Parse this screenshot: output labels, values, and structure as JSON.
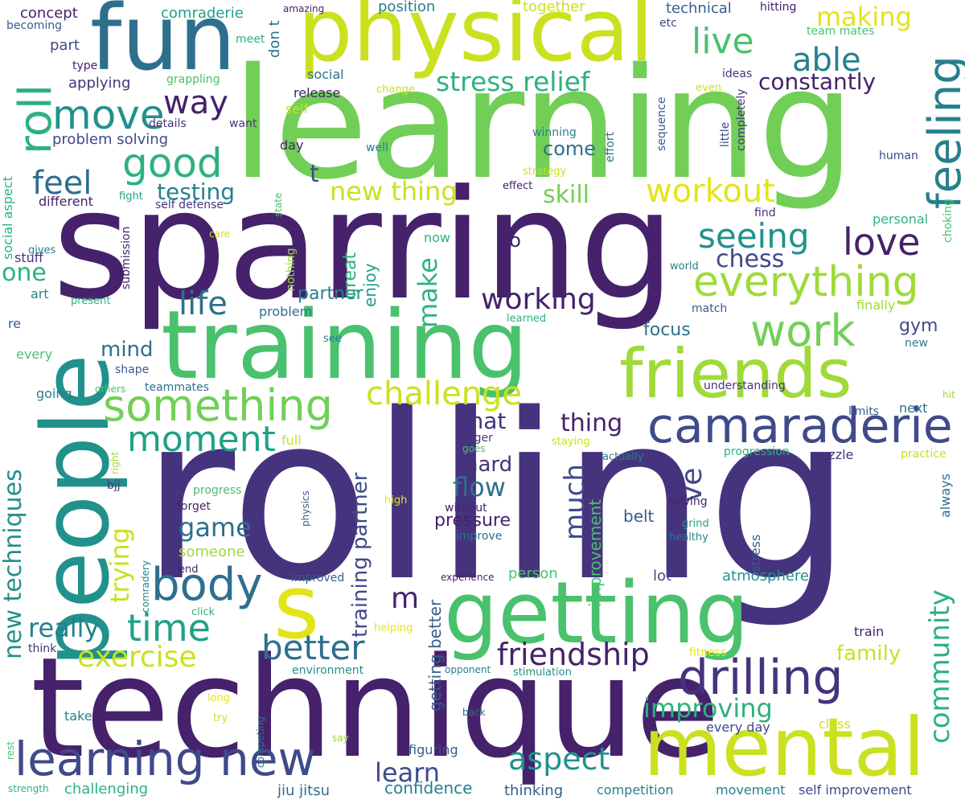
{
  "palette": {
    "dark_purple": "#45226b",
    "indigo": "#46337e",
    "blue_purple": "#3f4a8a",
    "blue": "#365c8d",
    "steel_blue": "#2e6f8e",
    "teal_blue": "#277f8e",
    "teal": "#21918c",
    "green_teal": "#1fa187",
    "green": "#2db27d",
    "medium_green": "#4ac16d",
    "light_green": "#71cf57",
    "yellow_green": "#a0da39",
    "lime": "#cae11f",
    "yellow": "#e3e418"
  },
  "words": [
    "rolling",
    "technique",
    "sparring",
    "learning",
    "fun",
    "physical",
    "training",
    "people",
    "getting",
    "mental",
    "friends",
    "s",
    "learning new",
    "drilling",
    "camaraderie",
    "something",
    "everything",
    "body",
    "time",
    "moment",
    "work",
    "feeling",
    "good",
    "move",
    "roll",
    "friendship",
    "love",
    "seeing",
    "workout",
    "challenge",
    "better",
    "exercise",
    "aspect",
    "life",
    "way",
    "working",
    "new thing",
    "improving",
    "community",
    "live",
    "able",
    "stress relief",
    "making",
    "constantly",
    "chess",
    "learn",
    "new techniques",
    "game",
    "m",
    "feel",
    "testing",
    "really",
    "trying",
    "flow",
    "mat",
    "make",
    "much",
    "ve",
    "thing",
    "hard",
    "skill",
    "come",
    "family",
    "mind",
    "one",
    "focus",
    "gym",
    "t",
    "training partner",
    "partner",
    "go",
    "enjoy",
    "great",
    "pressure",
    "confidence",
    "getting better",
    "improvement",
    "belt",
    "atmosphere",
    "someone",
    "lot",
    "person",
    "jiu jitsu",
    "competition",
    "thinking",
    "figuring",
    "every day",
    "class",
    "movement",
    "self improvement",
    "challenging",
    "stuff",
    "social aspect",
    "problem solving",
    "concept",
    "part",
    "applying",
    "grappling",
    "technical",
    "position",
    "together",
    "comraderie",
    "meet",
    "don t",
    "amazing",
    "hitting",
    "etc",
    "team mates",
    "becoming",
    "type",
    "social",
    "release",
    "change",
    "even",
    "ideas",
    "self",
    "details",
    "want",
    "winning",
    "effort",
    "sequence",
    "little",
    "completely",
    "well",
    "day",
    "human",
    "strategy",
    "different",
    "fight",
    "self defense",
    "effect",
    "state",
    "find",
    "personal",
    "choking",
    "submission",
    "care",
    "nothing",
    "gives",
    "world",
    "now",
    "match",
    "problem",
    "present",
    "art",
    "finally",
    "learned",
    "re",
    "see",
    "every",
    "shape",
    "teammates",
    "going",
    "others",
    "new",
    "understanding",
    "limits",
    "next",
    "hit",
    "full",
    "bigger",
    "goes",
    "staying",
    "actually",
    "progression",
    "puzzle",
    "practice",
    "right",
    "always",
    "bjj",
    "progress",
    "forget",
    "physics",
    "high",
    "without",
    "solving",
    "grind",
    "improve",
    "healthy",
    "stress",
    "end",
    "comradery",
    "improved",
    "experience",
    "click",
    "helping",
    "train",
    "think",
    "fitness",
    "environment",
    "opponent",
    "stimulation",
    "long",
    "try",
    "take",
    "back",
    "say",
    "competing",
    "rest",
    "strength"
  ]
}
